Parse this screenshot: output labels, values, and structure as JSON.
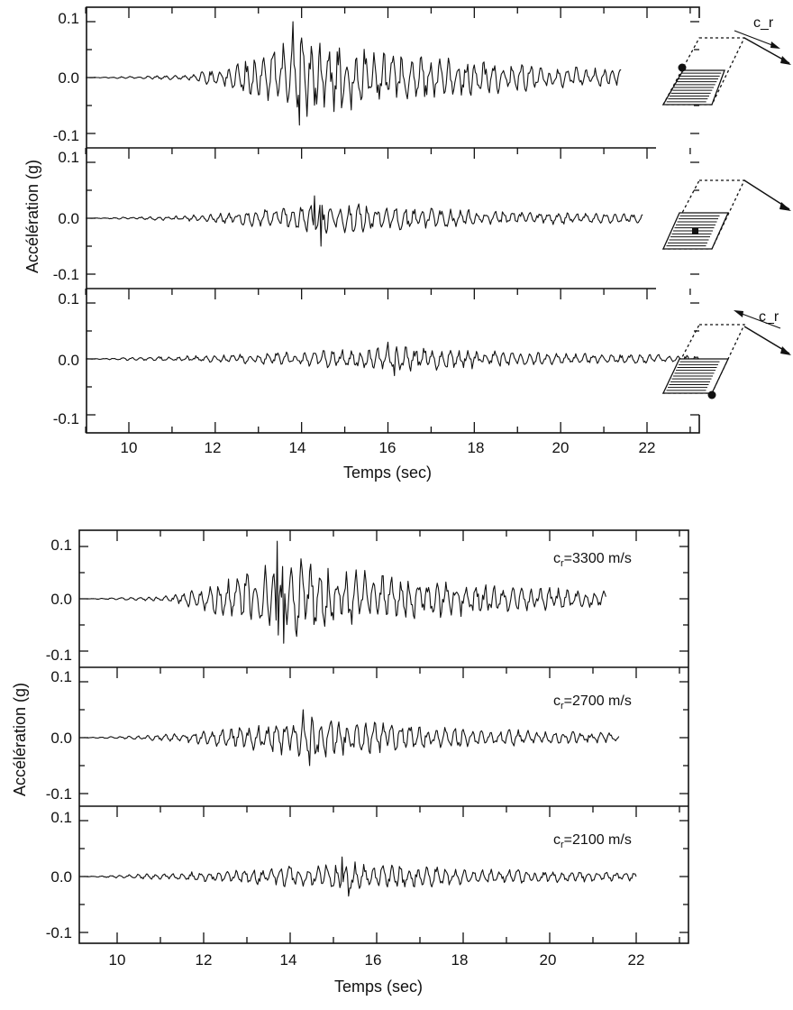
{
  "chart_data": [
    {
      "type": "line",
      "title": "",
      "xlabel": "Temps (sec)",
      "ylabel": "Accélération (g)",
      "x_ticks": [
        "10",
        "12",
        "14",
        "16",
        "18",
        "20",
        "22"
      ],
      "y_ticks": [
        "0.1",
        "0.0",
        "-0.1"
      ],
      "xlim": [
        9,
        23.5
      ],
      "ylim": [
        -0.12,
        0.12
      ],
      "grid": false,
      "panels": [
        {
          "label": "",
          "x_start": 9.0,
          "x_end": 21.4,
          "onset": 11.3,
          "peak_time": 13.8,
          "peak_amplitude": 0.1,
          "min_amplitude": -0.085,
          "inset": "rupture toward observer (c_r)"
        },
        {
          "label": "",
          "x_start": 9.0,
          "x_end": 21.9,
          "onset": 11.2,
          "peak_time": 14.3,
          "peak_amplitude": 0.04,
          "min_amplitude": -0.05,
          "inset": "station at fault center"
        },
        {
          "label": "",
          "x_start": 9.0,
          "x_end": 23.2,
          "onset": 10.8,
          "peak_time": 16.0,
          "peak_amplitude": 0.03,
          "min_amplitude": -0.03,
          "inset": "rupture away from observer (c_r)"
        }
      ],
      "inset_label": "c_r"
    },
    {
      "type": "line",
      "title": "",
      "xlabel": "Temps (sec)",
      "ylabel": "Accélération (g)",
      "x_ticks": [
        "10",
        "12",
        "14",
        "16",
        "18",
        "20",
        "22"
      ],
      "y_ticks": [
        "0.1",
        "0.0",
        "-0.1"
      ],
      "xlim": [
        9.2,
        23.4
      ],
      "ylim": [
        -0.12,
        0.12
      ],
      "grid": false,
      "panels": [
        {
          "label": "c_r=3300 m/s",
          "label_main": "c",
          "label_sub": "r",
          "label_rest": "=3300 m/s",
          "x_start": 9.2,
          "x_end": 21.3,
          "onset": 11.0,
          "peak_time": 13.7,
          "peak_amplitude": 0.11,
          "min_amplitude": -0.085
        },
        {
          "label": "c_r=2700 m/s",
          "label_main": "c",
          "label_sub": "r",
          "label_rest": "=2700 m/s",
          "x_start": 9.2,
          "x_end": 21.6,
          "onset": 10.8,
          "peak_time": 14.3,
          "peak_amplitude": 0.05,
          "min_amplitude": -0.05
        },
        {
          "label": "c_r=2100 m/s",
          "label_main": "c",
          "label_sub": "r",
          "label_rest": "=2100 m/s",
          "x_start": 9.2,
          "x_end": 22.0,
          "onset": 10.6,
          "peak_time": 15.2,
          "peak_amplitude": 0.035,
          "min_amplitude": -0.035
        }
      ]
    }
  ]
}
